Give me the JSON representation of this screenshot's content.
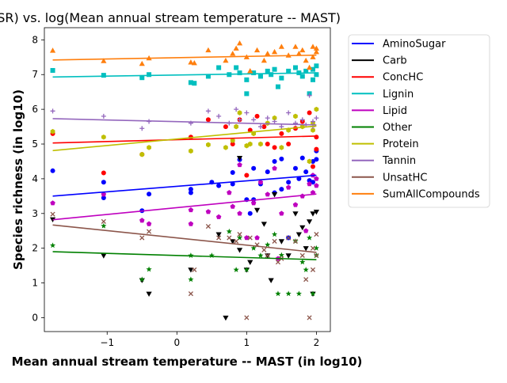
{
  "chart_data": {
    "type": "scatter",
    "title": "og(SR) vs. log(Mean annual stream temperature -- MAST)",
    "xlabel": "Mean annual stream temperature -- MAST (in log10)",
    "ylabel": "Species richness (in log10)",
    "xlim": [
      -1.9,
      2.2
    ],
    "ylim": [
      -0.4,
      8.35
    ],
    "xticks": [
      -1,
      0,
      1,
      2
    ],
    "yticks": [
      0,
      1,
      2,
      3,
      4,
      5,
      6,
      7,
      8
    ],
    "grid": false,
    "legend_position": "outside-right",
    "series": [
      {
        "name": "AminoSugar",
        "color": "#0000ff",
        "marker": "circle",
        "fit": [
          [
            -1.78,
            3.5
          ],
          [
            2.0,
            4.1
          ]
        ],
        "points": [
          [
            -1.78,
            4.23
          ],
          [
            -1.05,
            3.9
          ],
          [
            -1.05,
            3.45
          ],
          [
            -0.5,
            3.08
          ],
          [
            -0.4,
            3.56
          ],
          [
            0.2,
            3.7
          ],
          [
            0.2,
            3.6
          ],
          [
            0.5,
            3.9
          ],
          [
            0.6,
            3.8
          ],
          [
            0.8,
            3.85
          ],
          [
            0.8,
            4.18
          ],
          [
            0.9,
            4.55
          ],
          [
            1.0,
            3.4
          ],
          [
            1.05,
            3.0
          ],
          [
            1.1,
            3.4
          ],
          [
            1.1,
            4.3
          ],
          [
            1.2,
            3.85
          ],
          [
            1.3,
            4.2
          ],
          [
            1.4,
            3.6
          ],
          [
            1.4,
            4.5
          ],
          [
            1.5,
            3.7
          ],
          [
            1.5,
            4.57
          ],
          [
            1.6,
            3.9
          ],
          [
            1.6,
            2.3
          ],
          [
            1.7,
            4.3
          ],
          [
            1.75,
            4.0
          ],
          [
            1.8,
            4.6
          ],
          [
            1.85,
            4.2
          ],
          [
            1.9,
            3.95
          ],
          [
            1.95,
            4.5
          ],
          [
            2.0,
            4.56
          ],
          [
            2.0,
            4.8
          ],
          [
            1.95,
            3.9
          ]
        ]
      },
      {
        "name": "Carb",
        "color": "#000000",
        "marker": "triangle-down",
        "fit": [],
        "points": [
          [
            -1.78,
            2.83
          ],
          [
            -1.05,
            1.79
          ],
          [
            -0.5,
            1.08
          ],
          [
            -0.4,
            0.69
          ],
          [
            0.2,
            1.38
          ],
          [
            0.6,
            2.4
          ],
          [
            0.7,
            0.0
          ],
          [
            0.8,
            2.2
          ],
          [
            0.9,
            1.95
          ],
          [
            0.9,
            4.6
          ],
          [
            1.0,
            1.38
          ],
          [
            1.05,
            1.6
          ],
          [
            1.15,
            3.1
          ],
          [
            1.25,
            2.7
          ],
          [
            1.3,
            1.79
          ],
          [
            1.35,
            1.08
          ],
          [
            1.4,
            3.55
          ],
          [
            1.5,
            2.2
          ],
          [
            1.6,
            1.79
          ],
          [
            1.7,
            3.0
          ],
          [
            1.75,
            2.4
          ],
          [
            1.8,
            2.6
          ],
          [
            1.85,
            2.0
          ],
          [
            1.9,
            2.77
          ],
          [
            1.95,
            3.0
          ],
          [
            2.0,
            3.05
          ],
          [
            1.95,
            0.69
          ]
        ]
      },
      {
        "name": "ConcHC",
        "color": "#ff0000",
        "marker": "circle",
        "fit": [
          [
            -1.78,
            5.03
          ],
          [
            2.0,
            5.23
          ]
        ],
        "points": [
          [
            -1.78,
            5.3
          ],
          [
            -1.05,
            4.17
          ],
          [
            -0.5,
            4.7
          ],
          [
            0.2,
            5.2
          ],
          [
            0.45,
            5.7
          ],
          [
            0.7,
            5.5
          ],
          [
            0.8,
            5.0
          ],
          [
            0.9,
            5.7
          ],
          [
            1.0,
            4.1
          ],
          [
            1.05,
            5.4
          ],
          [
            1.15,
            5.8
          ],
          [
            1.25,
            5.5
          ],
          [
            1.3,
            5.0
          ],
          [
            1.4,
            4.9
          ],
          [
            1.5,
            5.3
          ],
          [
            1.6,
            5.0
          ],
          [
            1.7,
            5.45
          ],
          [
            1.8,
            5.65
          ],
          [
            1.9,
            5.9
          ],
          [
            2.0,
            4.85
          ],
          [
            2.0,
            5.2
          ],
          [
            1.95,
            4.35
          ]
        ]
      },
      {
        "name": "Lignin",
        "color": "#00bfbf",
        "marker": "square",
        "fit": [
          [
            -1.78,
            6.93
          ],
          [
            2.0,
            7.05
          ]
        ],
        "points": [
          [
            -1.78,
            7.12
          ],
          [
            -1.05,
            6.98
          ],
          [
            -0.5,
            6.91
          ],
          [
            -0.4,
            7.0
          ],
          [
            0.2,
            6.77
          ],
          [
            0.25,
            6.75
          ],
          [
            0.45,
            6.95
          ],
          [
            0.6,
            7.2
          ],
          [
            0.75,
            7.0
          ],
          [
            0.85,
            7.2
          ],
          [
            0.9,
            7.05
          ],
          [
            1.0,
            6.45
          ],
          [
            1.0,
            6.85
          ],
          [
            1.1,
            7.05
          ],
          [
            1.2,
            6.95
          ],
          [
            1.3,
            7.1
          ],
          [
            1.35,
            7.0
          ],
          [
            1.4,
            7.15
          ],
          [
            1.45,
            6.65
          ],
          [
            1.5,
            6.9
          ],
          [
            1.6,
            7.1
          ],
          [
            1.7,
            7.2
          ],
          [
            1.75,
            7.05
          ],
          [
            1.8,
            6.95
          ],
          [
            1.85,
            7.1
          ],
          [
            1.9,
            6.45
          ],
          [
            1.95,
            6.85
          ],
          [
            2.0,
            7.25
          ],
          [
            2.0,
            7.0
          ],
          [
            1.95,
            7.15
          ]
        ]
      },
      {
        "name": "Lipid",
        "color": "#bf00bf",
        "marker": "pentagon",
        "fit": [
          [
            -1.78,
            2.82
          ],
          [
            2.0,
            3.56
          ]
        ],
        "points": [
          [
            -1.78,
            3.3
          ],
          [
            -1.05,
            3.55
          ],
          [
            -0.5,
            2.8
          ],
          [
            -0.4,
            2.7
          ],
          [
            0.2,
            3.1
          ],
          [
            0.2,
            2.7
          ],
          [
            0.45,
            3.05
          ],
          [
            0.6,
            2.9
          ],
          [
            0.75,
            3.6
          ],
          [
            0.8,
            3.2
          ],
          [
            0.9,
            4.4
          ],
          [
            0.9,
            3.0
          ],
          [
            1.0,
            2.3
          ],
          [
            1.1,
            3.3
          ],
          [
            1.15,
            2.3
          ],
          [
            1.2,
            3.9
          ],
          [
            1.3,
            3.55
          ],
          [
            1.4,
            4.3
          ],
          [
            1.45,
            1.7
          ],
          [
            1.5,
            3.0
          ],
          [
            1.6,
            3.75
          ],
          [
            1.7,
            3.25
          ],
          [
            1.8,
            3.5
          ],
          [
            1.85,
            2.5
          ],
          [
            1.9,
            3.85
          ],
          [
            1.95,
            3.6
          ],
          [
            2.0,
            4.0
          ],
          [
            1.95,
            4.1
          ],
          [
            2.0,
            3.8
          ]
        ]
      },
      {
        "name": "Other",
        "color": "#008000",
        "marker": "star",
        "fit": [
          [
            -1.78,
            1.9
          ],
          [
            2.0,
            1.67
          ]
        ],
        "points": [
          [
            -1.78,
            2.08
          ],
          [
            -1.05,
            2.64
          ],
          [
            -0.5,
            1.1
          ],
          [
            -0.4,
            1.39
          ],
          [
            0.2,
            1.1
          ],
          [
            0.2,
            1.79
          ],
          [
            0.5,
            1.79
          ],
          [
            0.75,
            2.48
          ],
          [
            0.85,
            1.38
          ],
          [
            0.9,
            2.3
          ],
          [
            1.0,
            1.38
          ],
          [
            1.1,
            2.0
          ],
          [
            1.2,
            1.79
          ],
          [
            1.3,
            2.1
          ],
          [
            1.4,
            2.4
          ],
          [
            1.45,
            0.69
          ],
          [
            1.5,
            1.8
          ],
          [
            1.6,
            0.69
          ],
          [
            1.7,
            2.2
          ],
          [
            1.75,
            0.69
          ],
          [
            1.8,
            1.6
          ],
          [
            1.85,
            1.38
          ],
          [
            1.9,
            2.3
          ],
          [
            1.95,
            0.69
          ],
          [
            2.0,
            2.0
          ],
          [
            2.0,
            1.79
          ]
        ]
      },
      {
        "name": "Protein",
        "color": "#bfbf00",
        "marker": "hexagon",
        "fit": [
          [
            -1.78,
            4.81
          ],
          [
            2.0,
            5.52
          ]
        ],
        "points": [
          [
            -1.78,
            5.36
          ],
          [
            -1.05,
            5.2
          ],
          [
            -0.5,
            4.7
          ],
          [
            -0.4,
            4.9
          ],
          [
            0.2,
            4.8
          ],
          [
            0.45,
            4.98
          ],
          [
            0.7,
            4.9
          ],
          [
            0.8,
            5.1
          ],
          [
            0.85,
            5.5
          ],
          [
            0.9,
            5.9
          ],
          [
            1.0,
            4.95
          ],
          [
            1.05,
            5.0
          ],
          [
            1.1,
            5.3
          ],
          [
            1.2,
            5.0
          ],
          [
            1.3,
            5.6
          ],
          [
            1.4,
            5.75
          ],
          [
            1.5,
            4.9
          ],
          [
            1.6,
            5.4
          ],
          [
            1.7,
            5.8
          ],
          [
            1.8,
            5.5
          ],
          [
            1.9,
            4.5
          ],
          [
            1.95,
            5.6
          ],
          [
            2.0,
            6.0
          ],
          [
            1.95,
            5.4
          ]
        ]
      },
      {
        "name": "Tannin",
        "color": "#9467bd",
        "marker": "plus",
        "fit": [
          [
            -1.78,
            5.73
          ],
          [
            2.0,
            5.55
          ]
        ],
        "points": [
          [
            -1.78,
            5.95
          ],
          [
            -1.05,
            5.8
          ],
          [
            -0.5,
            5.45
          ],
          [
            -0.4,
            5.65
          ],
          [
            0.2,
            5.6
          ],
          [
            0.45,
            5.95
          ],
          [
            0.6,
            5.8
          ],
          [
            0.75,
            5.6
          ],
          [
            0.85,
            6.0
          ],
          [
            0.9,
            5.7
          ],
          [
            1.0,
            5.9
          ],
          [
            1.1,
            5.7
          ],
          [
            1.2,
            5.5
          ],
          [
            1.3,
            5.75
          ],
          [
            1.4,
            5.65
          ],
          [
            1.5,
            5.5
          ],
          [
            1.6,
            5.9
          ],
          [
            1.7,
            5.6
          ],
          [
            1.8,
            5.7
          ],
          [
            1.85,
            5.55
          ],
          [
            1.9,
            6.4
          ],
          [
            1.95,
            5.5
          ],
          [
            2.0,
            5.75
          ],
          [
            1.95,
            5.65
          ]
        ]
      },
      {
        "name": "UnsatHC",
        "color": "#8c564b",
        "marker": "x",
        "fit": [
          [
            -1.78,
            2.67
          ],
          [
            2.0,
            1.88
          ]
        ],
        "points": [
          [
            -1.78,
            2.98
          ],
          [
            -1.05,
            2.77
          ],
          [
            -0.5,
            2.3
          ],
          [
            -0.4,
            2.48
          ],
          [
            0.2,
            0.69
          ],
          [
            0.25,
            1.38
          ],
          [
            0.45,
            2.63
          ],
          [
            0.6,
            2.3
          ],
          [
            0.75,
            2.3
          ],
          [
            0.85,
            2.2
          ],
          [
            0.9,
            2.4
          ],
          [
            1.0,
            0.0
          ],
          [
            1.05,
            2.3
          ],
          [
            1.15,
            2.1
          ],
          [
            1.25,
            1.95
          ],
          [
            1.3,
            1.79
          ],
          [
            1.4,
            2.2
          ],
          [
            1.45,
            1.6
          ],
          [
            1.5,
            1.7
          ],
          [
            1.6,
            2.3
          ],
          [
            1.7,
            2.2
          ],
          [
            1.8,
            1.79
          ],
          [
            1.85,
            1.1
          ],
          [
            1.9,
            0.0
          ],
          [
            1.95,
            1.38
          ],
          [
            2.0,
            1.79
          ],
          [
            2.0,
            2.4
          ],
          [
            1.95,
            2.0
          ]
        ]
      },
      {
        "name": "SumAllCompounds",
        "color": "#ff7f0e",
        "marker": "triangle-up",
        "fit": [
          [
            -1.78,
            7.42
          ],
          [
            2.0,
            7.56
          ]
        ],
        "points": [
          [
            -1.78,
            7.69
          ],
          [
            -1.05,
            7.39
          ],
          [
            -0.5,
            7.31
          ],
          [
            -0.4,
            7.47
          ],
          [
            0.2,
            7.35
          ],
          [
            0.25,
            7.33
          ],
          [
            0.45,
            7.7
          ],
          [
            0.7,
            7.4
          ],
          [
            0.8,
            7.6
          ],
          [
            0.85,
            7.75
          ],
          [
            0.9,
            7.9
          ],
          [
            1.0,
            7.5
          ],
          [
            1.05,
            7.1
          ],
          [
            1.15,
            7.7
          ],
          [
            1.25,
            7.4
          ],
          [
            1.3,
            7.6
          ],
          [
            1.4,
            7.65
          ],
          [
            1.5,
            7.8
          ],
          [
            1.6,
            7.55
          ],
          [
            1.7,
            7.8
          ],
          [
            1.75,
            7.6
          ],
          [
            1.8,
            7.7
          ],
          [
            1.85,
            7.4
          ],
          [
            1.9,
            7.2
          ],
          [
            1.95,
            7.8
          ],
          [
            2.0,
            7.75
          ],
          [
            2.0,
            7.65
          ],
          [
            1.95,
            7.5
          ]
        ]
      }
    ]
  }
}
